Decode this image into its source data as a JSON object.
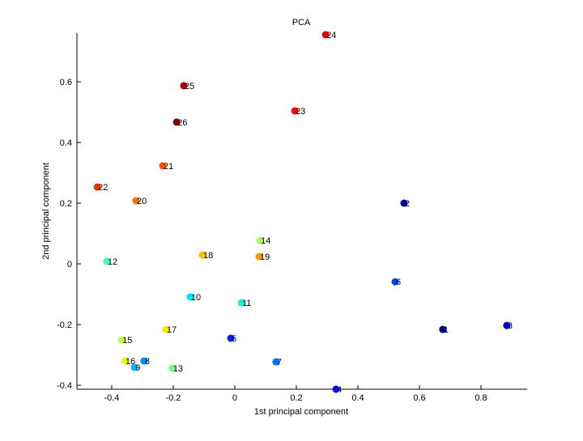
{
  "chart_data": {
    "type": "scatter",
    "title": "PCA",
    "xlabel": "1st principal component",
    "ylabel": "2nd principal component",
    "xlim": [
      -0.513,
      0.95
    ],
    "ylim": [
      -0.413,
      0.76
    ],
    "xticks": [
      -0.4,
      -0.2,
      0,
      0.2,
      0.4,
      0.6,
      0.8
    ],
    "xtick_labels": [
      "-0.4",
      "-0.2",
      "0",
      "0.2",
      "0.4",
      "0.6",
      "0.8"
    ],
    "yticks": [
      -0.4,
      -0.2,
      0,
      0.2,
      0.4,
      0.6
    ],
    "ytick_labels": [
      "-0.4",
      "-0.2",
      "0",
      "0.2",
      "0.4",
      "0.6"
    ],
    "grid": false,
    "points": [
      {
        "label": "1",
        "x": 0.676,
        "y": -0.216,
        "color": "#00008c"
      },
      {
        "label": "2",
        "x": 0.55,
        "y": 0.2,
        "color": "#0000a8"
      },
      {
        "label": "3",
        "x": 0.884,
        "y": -0.203,
        "color": "#0000cc"
      },
      {
        "label": "4",
        "x": 0.329,
        "y": -0.413,
        "color": "#0000f0"
      },
      {
        "label": "5",
        "x": -0.013,
        "y": -0.245,
        "color": "#0020ff"
      },
      {
        "label": "6",
        "x": 0.521,
        "y": -0.059,
        "color": "#0048ff"
      },
      {
        "label": "7",
        "x": 0.134,
        "y": -0.323,
        "color": "#0070ff"
      },
      {
        "label": "8",
        "x": -0.295,
        "y": -0.32,
        "color": "#0090ff"
      },
      {
        "label": "9",
        "x": -0.326,
        "y": -0.341,
        "color": "#00b8ff"
      },
      {
        "label": "10",
        "x": -0.145,
        "y": -0.109,
        "color": "#00e8ff"
      },
      {
        "label": "11",
        "x": 0.021,
        "y": -0.128,
        "color": "#20f0d8"
      },
      {
        "label": "12",
        "x": -0.416,
        "y": 0.008,
        "color": "#40ffc0"
      },
      {
        "label": "13",
        "x": -0.203,
        "y": -0.344,
        "color": "#70ff88"
      },
      {
        "label": "14",
        "x": 0.082,
        "y": 0.077,
        "color": "#a8ff58"
      },
      {
        "label": "15",
        "x": -0.368,
        "y": -0.251,
        "color": "#c0ff40"
      },
      {
        "label": "16",
        "x": -0.358,
        "y": -0.32,
        "color": "#e8ff10"
      },
      {
        "label": "17",
        "x": -0.224,
        "y": -0.216,
        "color": "#ffe800"
      },
      {
        "label": "18",
        "x": -0.105,
        "y": 0.029,
        "color": "#ffc000"
      },
      {
        "label": "19",
        "x": 0.079,
        "y": 0.024,
        "color": "#ff9800"
      },
      {
        "label": "20",
        "x": -0.321,
        "y": 0.208,
        "color": "#ff7000"
      },
      {
        "label": "21",
        "x": -0.234,
        "y": 0.323,
        "color": "#ff5000"
      },
      {
        "label": "22",
        "x": -0.447,
        "y": 0.253,
        "color": "#ff3000"
      },
      {
        "label": "23",
        "x": 0.195,
        "y": 0.504,
        "color": "#ff0000"
      },
      {
        "label": "24",
        "x": 0.295,
        "y": 0.755,
        "color": "#e00000"
      },
      {
        "label": "25",
        "x": -0.166,
        "y": 0.587,
        "color": "#b00000"
      },
      {
        "label": "26",
        "x": -0.189,
        "y": 0.467,
        "color": "#800000"
      }
    ]
  }
}
